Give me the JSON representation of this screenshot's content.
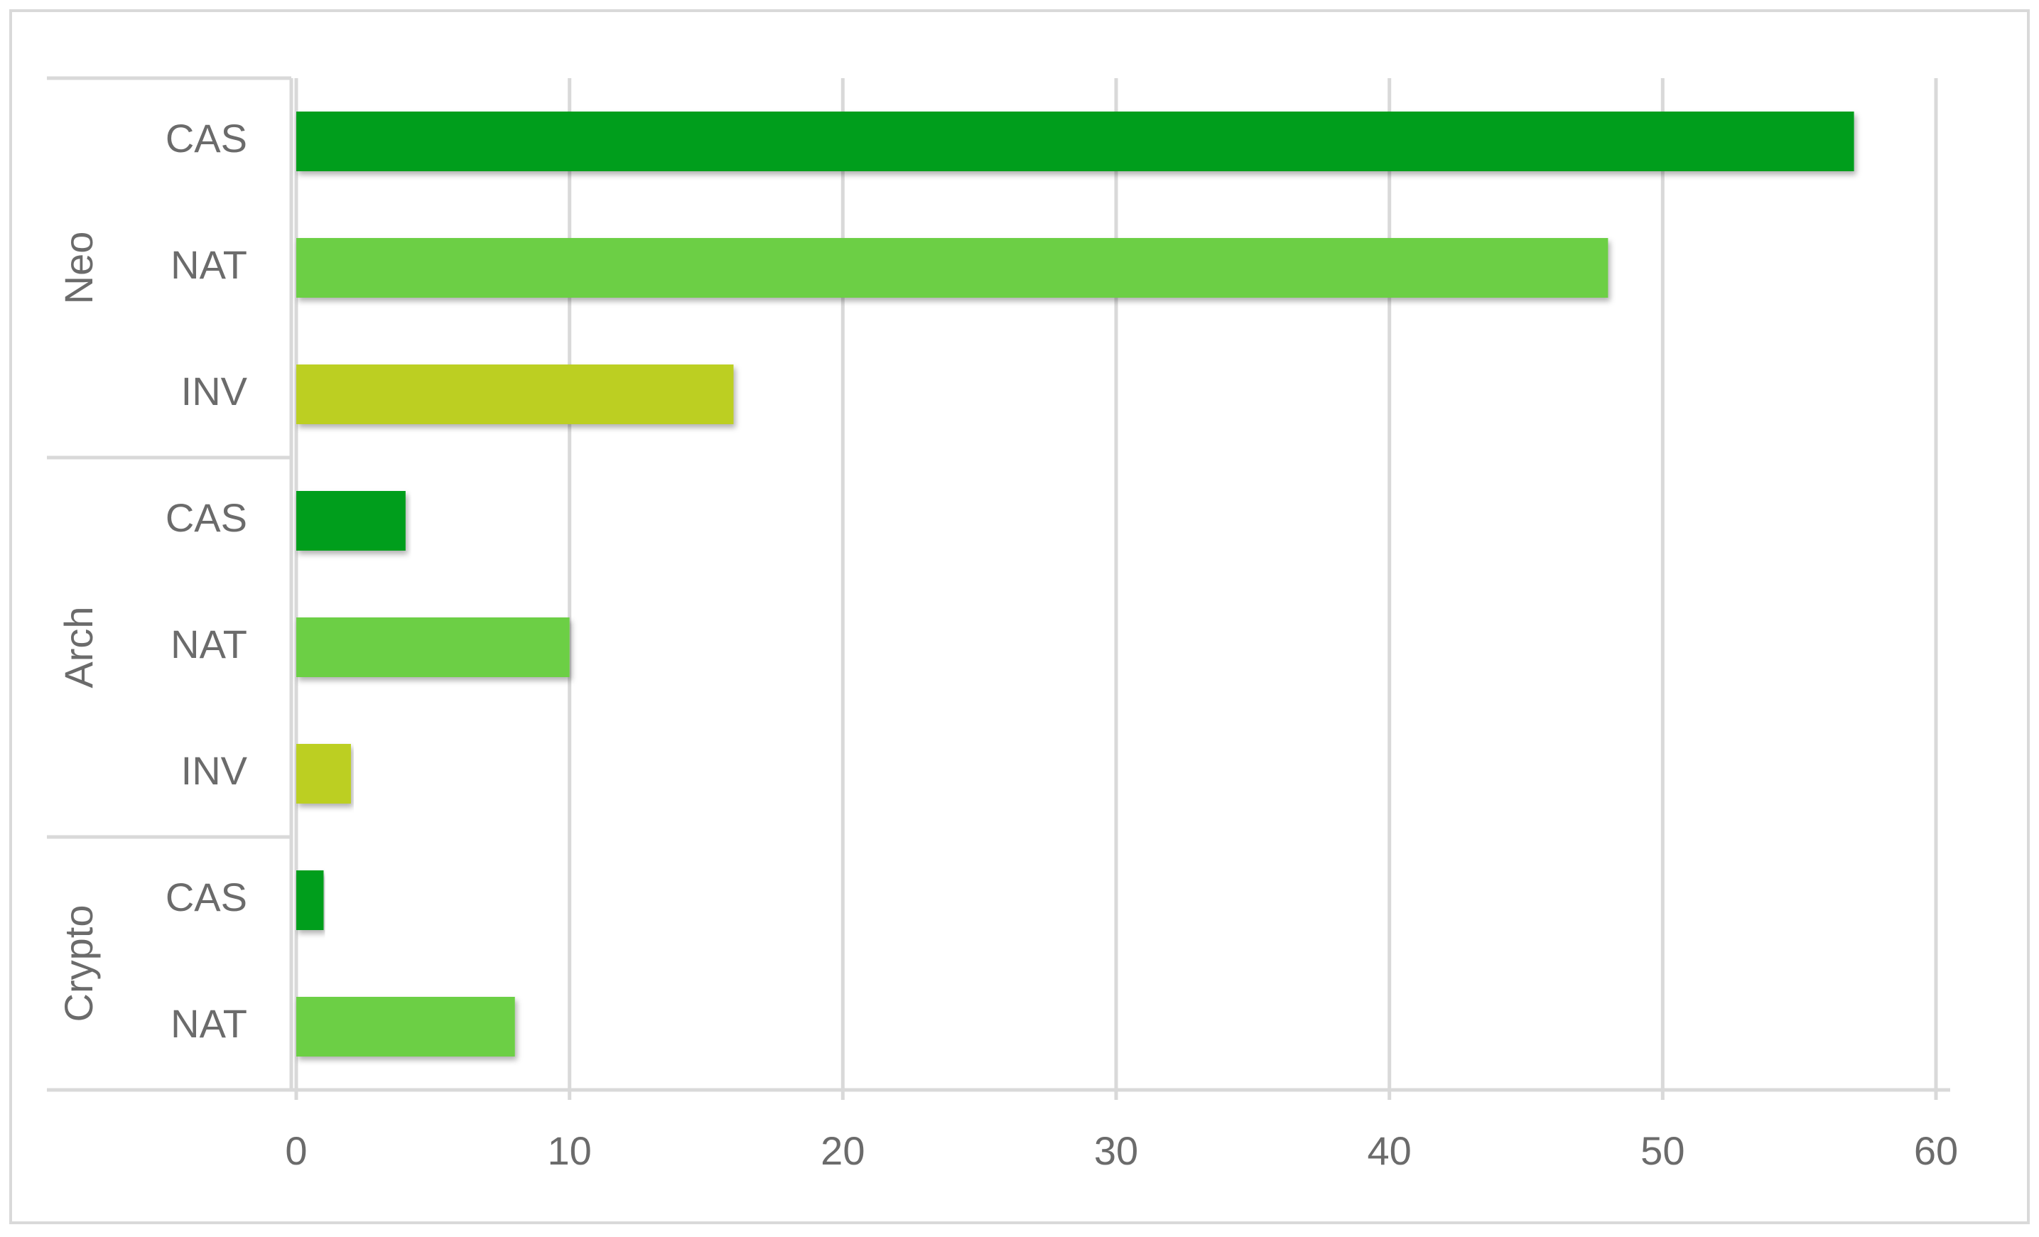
{
  "chart_data": {
    "type": "bar",
    "orientation": "horizontal",
    "groups": [
      {
        "name": "Neo",
        "categories": [
          "CAS",
          "NAT",
          "INV"
        ],
        "values": [
          57,
          48,
          16
        ],
        "colors": [
          "#009e1f",
          "#6ccf45",
          "#bccf21"
        ]
      },
      {
        "name": "Arch",
        "categories": [
          "CAS",
          "NAT",
          "INV"
        ],
        "values": [
          4,
          10,
          2
        ],
        "colors": [
          "#009e1f",
          "#6ccf45",
          "#bccf21"
        ]
      },
      {
        "name": "Crypto",
        "categories": [
          "CAS",
          "NAT"
        ],
        "values": [
          1,
          8
        ],
        "colors": [
          "#009e1f",
          "#6ccf45"
        ]
      }
    ],
    "xlim": [
      0,
      60
    ],
    "xticks": [
      0,
      10,
      20,
      30,
      40,
      50,
      60
    ],
    "grid": true
  }
}
